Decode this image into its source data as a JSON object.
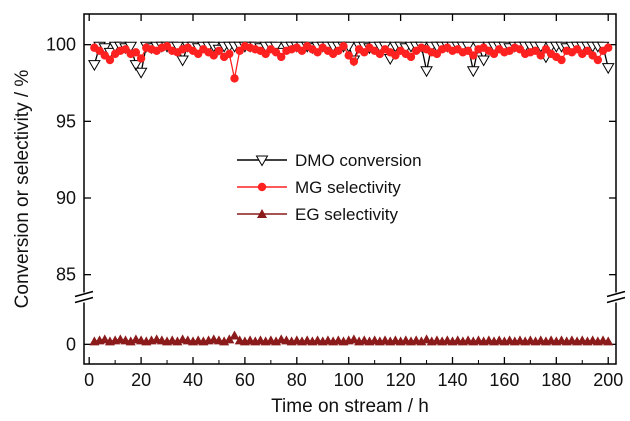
{
  "chart_data": {
    "type": "line",
    "title": "",
    "xlabel": "Time on stream / h",
    "ylabel": "Conversion or selectivity / %",
    "xlim": [
      -2,
      203
    ],
    "xticks": [
      0,
      20,
      40,
      60,
      80,
      100,
      120,
      140,
      160,
      180,
      200
    ],
    "ylim_upper": [
      84,
      102
    ],
    "yticks_upper": [
      85,
      90,
      95,
      100
    ],
    "ylim_lower": [
      -2,
      4
    ],
    "yticks_lower": [
      0
    ],
    "axis_break": "between 0 and 85 on y axis",
    "grid": false,
    "legend_position": "center",
    "series": [
      {
        "name": "DMO conversion",
        "marker": "open-triangle-down",
        "color": "#000000",
        "x": [
          2,
          4,
          6,
          8,
          10,
          12,
          14,
          16,
          18,
          20,
          22,
          24,
          26,
          28,
          30,
          32,
          34,
          36,
          38,
          40,
          42,
          44,
          46,
          48,
          50,
          52,
          54,
          56,
          58,
          60,
          62,
          64,
          66,
          68,
          70,
          72,
          74,
          76,
          78,
          80,
          82,
          84,
          86,
          88,
          90,
          92,
          94,
          96,
          98,
          100,
          102,
          104,
          106,
          108,
          110,
          112,
          114,
          116,
          118,
          120,
          122,
          124,
          126,
          128,
          130,
          132,
          134,
          136,
          138,
          140,
          142,
          144,
          146,
          148,
          150,
          152,
          154,
          156,
          158,
          160,
          162,
          164,
          166,
          168,
          170,
          172,
          174,
          176,
          178,
          180,
          182,
          184,
          186,
          188,
          190,
          192,
          194,
          196,
          198,
          200
        ],
        "y": [
          98.7,
          99.9,
          99.8,
          99.5,
          99.9,
          99.9,
          99.8,
          99.9,
          98.7,
          98.2,
          99.9,
          99.8,
          99.9,
          99.9,
          99.9,
          99.9,
          99.9,
          99.0,
          99.9,
          99.9,
          99.8,
          99.9,
          99.9,
          99.9,
          99.7,
          99.9,
          99.9,
          99.9,
          99.9,
          99.9,
          99.9,
          99.9,
          99.8,
          99.9,
          99.9,
          99.9,
          99.5,
          99.9,
          99.9,
          99.9,
          99.9,
          99.9,
          99.8,
          99.9,
          99.9,
          99.9,
          99.9,
          99.9,
          99.9,
          99.9,
          99.0,
          99.9,
          99.9,
          99.8,
          99.9,
          99.9,
          99.9,
          99.1,
          99.9,
          99.9,
          99.8,
          99.9,
          99.9,
          99.9,
          98.3,
          99.9,
          99.9,
          99.9,
          99.9,
          99.9,
          99.9,
          99.9,
          99.9,
          98.3,
          99.9,
          99.0,
          99.9,
          99.9,
          99.9,
          99.9,
          99.8,
          99.9,
          99.9,
          99.9,
          99.9,
          99.9,
          99.9,
          99.2,
          99.9,
          99.9,
          99.9,
          99.8,
          99.9,
          99.9,
          99.9,
          99.9,
          99.9,
          99.9,
          99.9,
          98.5
        ]
      },
      {
        "name": "MG selectivity",
        "marker": "filled-circle",
        "color": "#ff2020",
        "x": [
          2,
          4,
          6,
          8,
          10,
          12,
          14,
          16,
          18,
          20,
          22,
          24,
          26,
          28,
          30,
          32,
          34,
          36,
          38,
          40,
          42,
          44,
          46,
          48,
          50,
          52,
          54,
          56,
          58,
          60,
          62,
          64,
          66,
          68,
          70,
          72,
          74,
          76,
          78,
          80,
          82,
          84,
          86,
          88,
          90,
          92,
          94,
          96,
          98,
          100,
          102,
          104,
          106,
          108,
          110,
          112,
          114,
          116,
          118,
          120,
          122,
          124,
          126,
          128,
          130,
          132,
          134,
          136,
          138,
          140,
          142,
          144,
          146,
          148,
          150,
          152,
          154,
          156,
          158,
          160,
          162,
          164,
          166,
          168,
          170,
          172,
          174,
          176,
          178,
          180,
          182,
          184,
          186,
          188,
          190,
          192,
          194,
          196,
          198,
          200
        ],
        "y": [
          99.8,
          99.6,
          99.3,
          99.0,
          99.4,
          99.6,
          99.7,
          99.4,
          99.5,
          99.1,
          99.8,
          99.7,
          99.6,
          99.8,
          99.9,
          99.6,
          99.5,
          99.7,
          99.8,
          99.6,
          99.4,
          99.7,
          99.5,
          99.3,
          99.6,
          99.2,
          99.4,
          97.8,
          99.6,
          99.9,
          99.8,
          99.7,
          99.6,
          99.4,
          99.7,
          99.5,
          99.2,
          99.6,
          99.7,
          99.8,
          99.6,
          99.9,
          99.7,
          99.5,
          99.8,
          99.6,
          99.4,
          99.6,
          99.9,
          99.3,
          98.9,
          99.7,
          99.5,
          99.8,
          99.6,
          99.4,
          99.7,
          99.5,
          99.3,
          99.6,
          99.4,
          99.2,
          99.6,
          99.8,
          99.7,
          99.5,
          99.4,
          99.7,
          99.8,
          99.6,
          99.7,
          99.5,
          99.6,
          99.3,
          99.7,
          99.8,
          99.6,
          99.4,
          99.7,
          99.5,
          99.6,
          99.8,
          99.7,
          99.4,
          99.5,
          99.6,
          99.3,
          99.7,
          99.4,
          99.2,
          99.0,
          99.6,
          99.5,
          99.7,
          99.4,
          99.6,
          99.3,
          99.0,
          99.6,
          99.8
        ]
      },
      {
        "name": "EG selectivity",
        "marker": "filled-triangle-up",
        "color": "#8b1a1a",
        "x": [
          2,
          4,
          6,
          8,
          10,
          12,
          14,
          16,
          18,
          20,
          22,
          24,
          26,
          28,
          30,
          32,
          34,
          36,
          38,
          40,
          42,
          44,
          46,
          48,
          50,
          52,
          54,
          56,
          58,
          60,
          62,
          64,
          66,
          68,
          70,
          72,
          74,
          76,
          78,
          80,
          82,
          84,
          86,
          88,
          90,
          92,
          94,
          96,
          98,
          100,
          102,
          104,
          106,
          108,
          110,
          112,
          114,
          116,
          118,
          120,
          122,
          124,
          126,
          128,
          130,
          132,
          134,
          136,
          138,
          140,
          142,
          144,
          146,
          148,
          150,
          152,
          154,
          156,
          158,
          160,
          162,
          164,
          166,
          168,
          170,
          172,
          174,
          176,
          178,
          180,
          182,
          184,
          186,
          188,
          190,
          192,
          194,
          196,
          198,
          200
        ],
        "y": [
          0.3,
          0.4,
          0.5,
          0.3,
          0.4,
          0.5,
          0.4,
          0.3,
          0.5,
          0.4,
          0.3,
          0.4,
          0.5,
          0.4,
          0.3,
          0.4,
          0.3,
          0.5,
          0.4,
          0.3,
          0.4,
          0.3,
          0.4,
          0.5,
          0.4,
          0.3,
          0.5,
          0.9,
          0.4,
          0.3,
          0.4,
          0.3,
          0.4,
          0.3,
          0.4,
          0.3,
          0.5,
          0.4,
          0.3,
          0.4,
          0.3,
          0.4,
          0.3,
          0.4,
          0.3,
          0.4,
          0.3,
          0.4,
          0.3,
          0.4,
          0.5,
          0.3,
          0.4,
          0.3,
          0.4,
          0.3,
          0.4,
          0.3,
          0.4,
          0.3,
          0.4,
          0.3,
          0.4,
          0.3,
          0.5,
          0.3,
          0.4,
          0.3,
          0.4,
          0.3,
          0.4,
          0.3,
          0.4,
          0.3,
          0.4,
          0.3,
          0.4,
          0.3,
          0.4,
          0.3,
          0.4,
          0.3,
          0.4,
          0.3,
          0.4,
          0.3,
          0.4,
          0.3,
          0.4,
          0.3,
          0.4,
          0.3,
          0.4,
          0.3,
          0.4,
          0.3,
          0.4,
          0.3,
          0.4,
          0.3
        ]
      }
    ]
  }
}
